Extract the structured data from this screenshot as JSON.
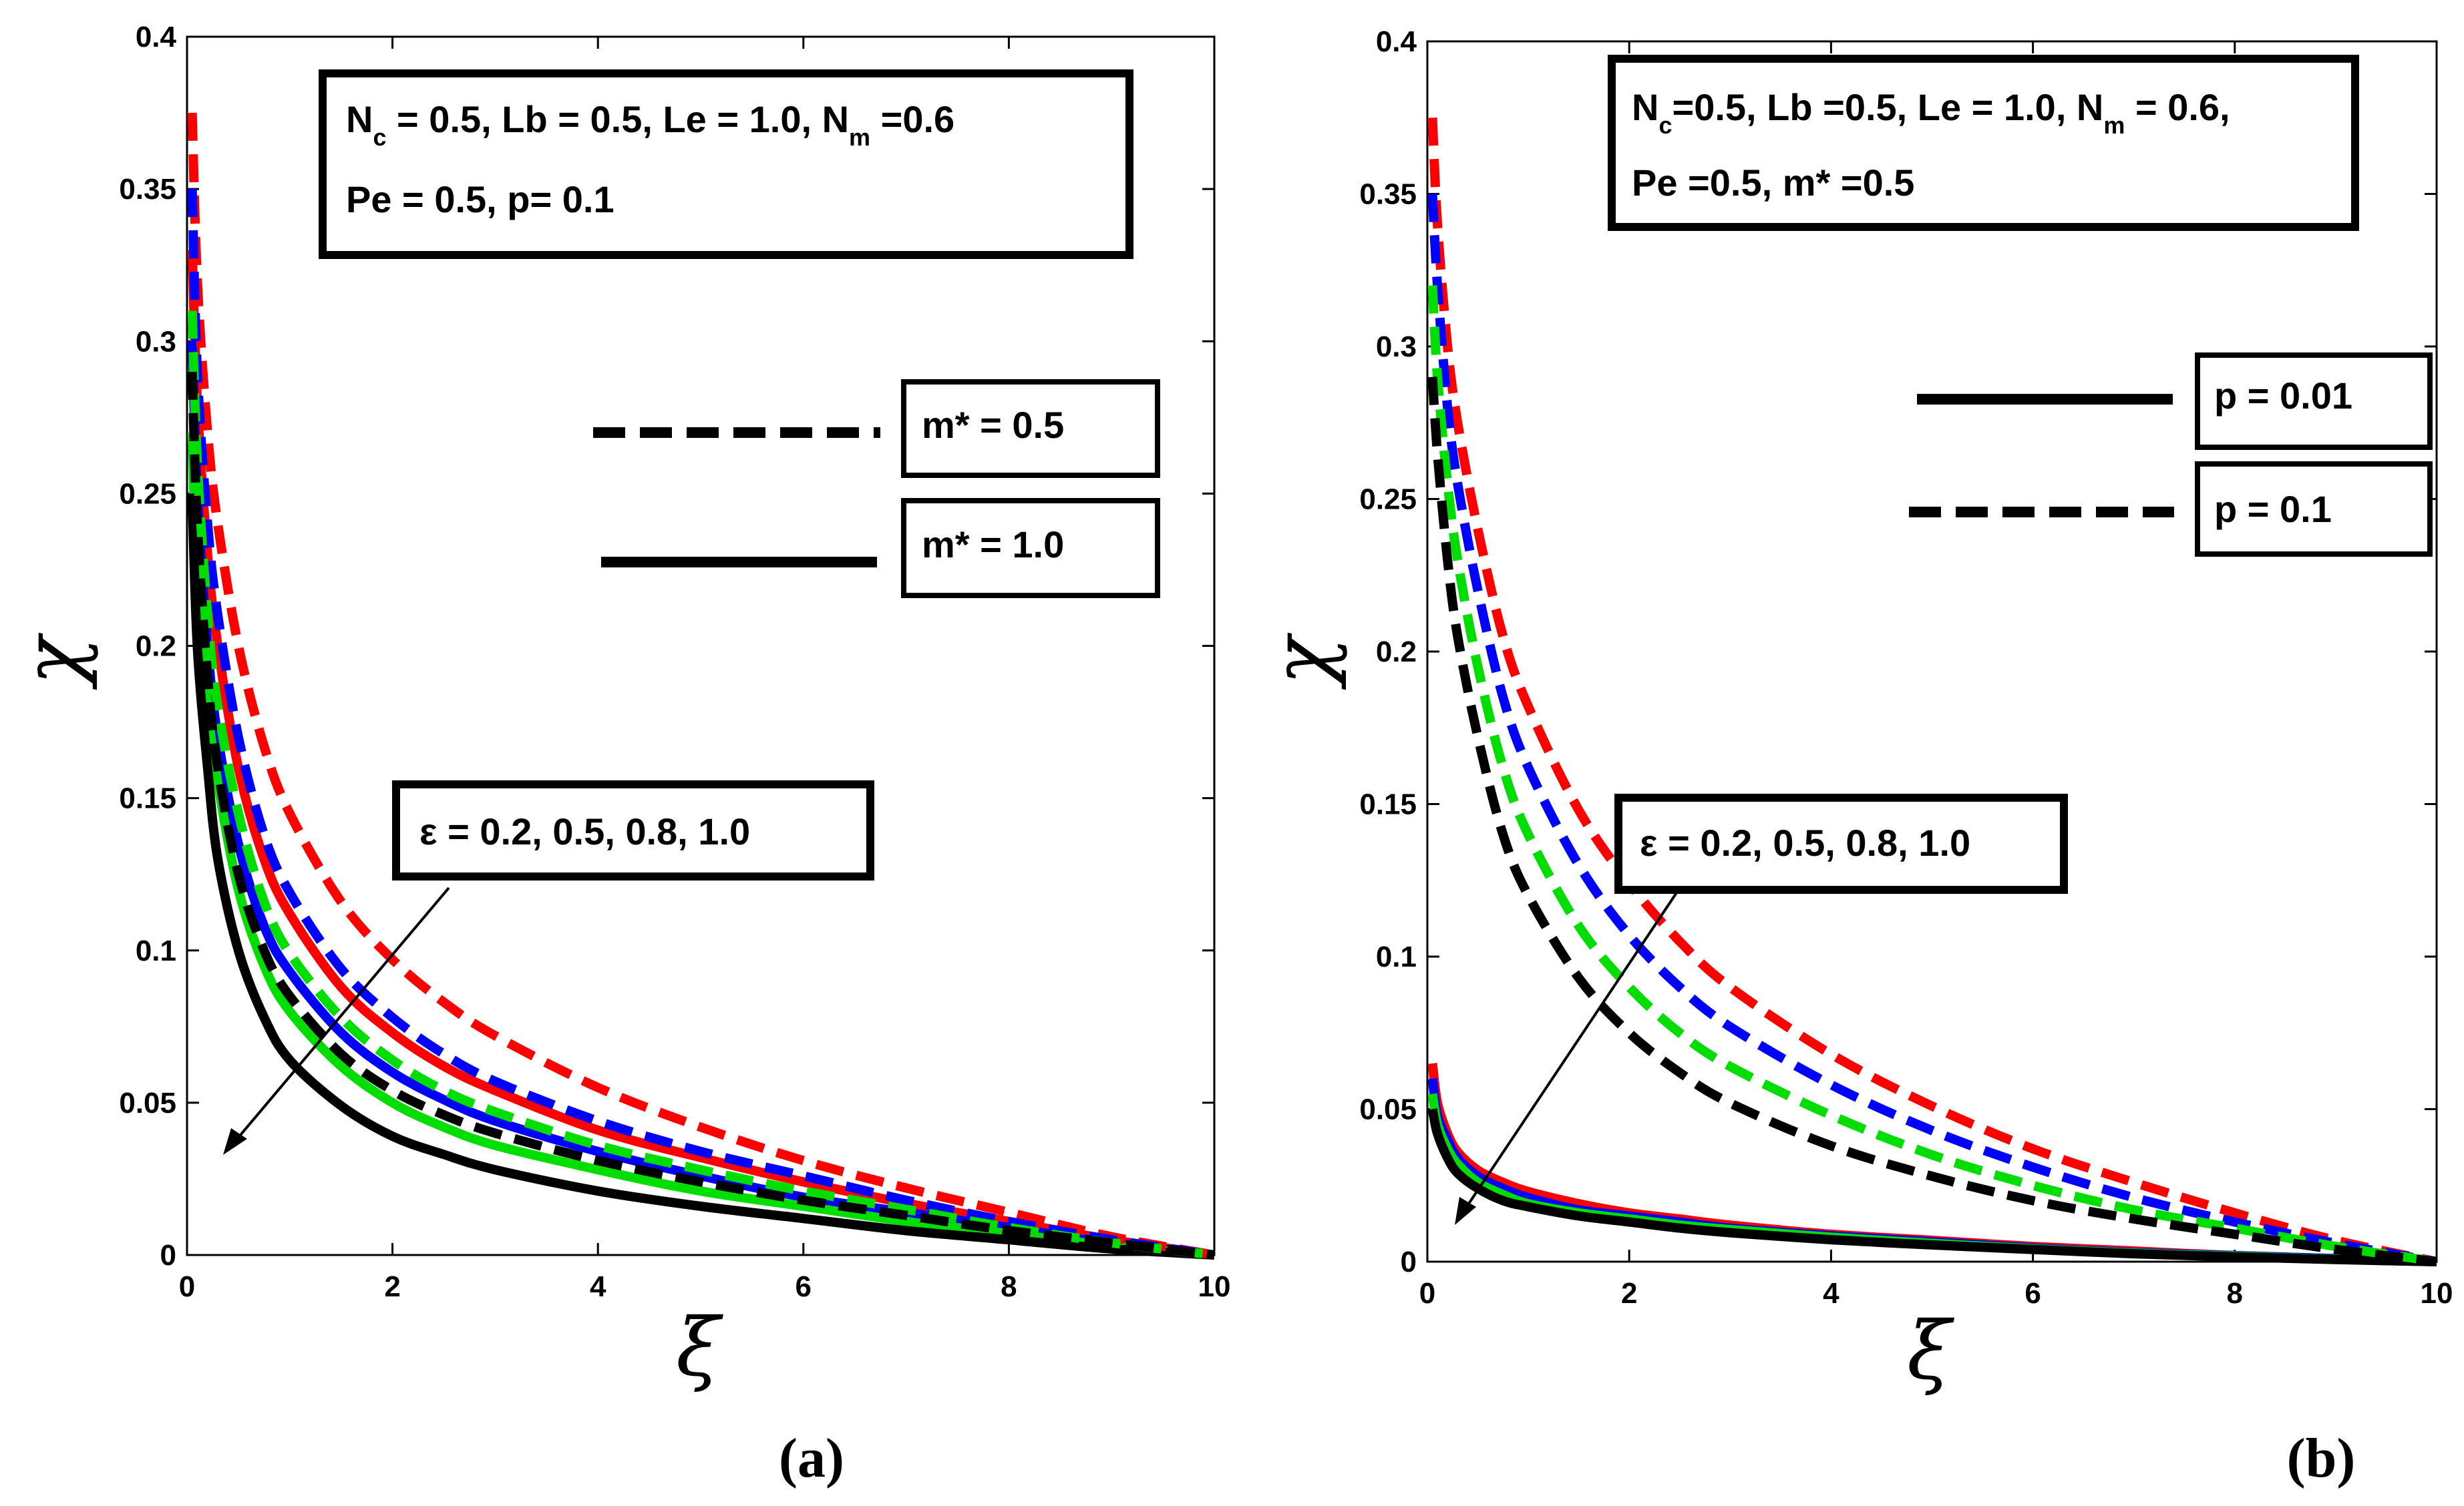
{
  "chart_data": [
    {
      "type": "line",
      "panel_label": "(a)",
      "xlabel": "ξ",
      "ylabel": "χ",
      "xlim": [
        0,
        10
      ],
      "ylim": [
        0,
        0.4
      ],
      "x_ticks": [
        "0",
        "2",
        "4",
        "6",
        "8",
        "10"
      ],
      "y_ticks": [
        "0",
        "0.05",
        "0.1",
        "0.15",
        "0.2",
        "0.25",
        "0.3",
        "0.35",
        "0.4"
      ],
      "params_line1": [
        "N",
        "c",
        " = 0.5, Lb = 0.5, Le = 1.0, N",
        "m",
        " =0.6"
      ],
      "params_line2": "Pe =  0.5, p= 0.1",
      "legend": [
        {
          "label": "m* = 0.5",
          "style": "dashed"
        },
        {
          "label": "m* = 1.0",
          "style": "solid"
        }
      ],
      "annotation": "ε = 0.2, 0.5, 0.8, 1.0",
      "series_colors": [
        "#ff0000",
        "#0000ff",
        "#00dd00",
        "#000000"
      ],
      "x": [
        0.05,
        0.1,
        0.2,
        0.3,
        0.5,
        0.75,
        1,
        1.5,
        2,
        2.5,
        3,
        4,
        5,
        6,
        7,
        8,
        9,
        10
      ],
      "series": [
        {
          "style": "dashed",
          "color": "#ff0000",
          "values": [
            0.375,
            0.32,
            0.27,
            0.24,
            0.2,
            0.167,
            0.145,
            0.116,
            0.097,
            0.083,
            0.072,
            0.055,
            0.042,
            0.031,
            0.022,
            0.014,
            0.006,
            0.0
          ]
        },
        {
          "style": "dashed",
          "color": "#0000ff",
          "values": [
            0.35,
            0.29,
            0.24,
            0.21,
            0.17,
            0.138,
            0.119,
            0.094,
            0.078,
            0.066,
            0.057,
            0.044,
            0.034,
            0.026,
            0.018,
            0.011,
            0.005,
            0.0
          ]
        },
        {
          "style": "dashed",
          "color": "#00dd00",
          "values": [
            0.31,
            0.26,
            0.21,
            0.18,
            0.145,
            0.116,
            0.099,
            0.078,
            0.064,
            0.054,
            0.047,
            0.036,
            0.028,
            0.021,
            0.015,
            0.009,
            0.004,
            0.0
          ]
        },
        {
          "style": "dashed",
          "color": "#000000",
          "values": [
            0.29,
            0.24,
            0.19,
            0.16,
            0.125,
            0.1,
            0.085,
            0.066,
            0.054,
            0.046,
            0.04,
            0.031,
            0.024,
            0.018,
            0.013,
            0.008,
            0.004,
            0.0
          ]
        },
        {
          "style": "solid",
          "color": "#ff0000",
          "values": [
            0.33,
            0.28,
            0.23,
            0.2,
            0.16,
            0.13,
            0.112,
            0.088,
            0.073,
            0.062,
            0.054,
            0.041,
            0.032,
            0.024,
            0.017,
            0.011,
            0.005,
            0.0
          ]
        },
        {
          "style": "solid",
          "color": "#0000ff",
          "values": [
            0.3,
            0.25,
            0.2,
            0.17,
            0.135,
            0.108,
            0.093,
            0.073,
            0.06,
            0.051,
            0.044,
            0.034,
            0.026,
            0.019,
            0.014,
            0.009,
            0.004,
            0.0
          ]
        },
        {
          "style": "solid",
          "color": "#00dd00",
          "values": [
            0.27,
            0.22,
            0.18,
            0.155,
            0.12,
            0.095,
            0.08,
            0.062,
            0.05,
            0.042,
            0.036,
            0.028,
            0.021,
            0.016,
            0.011,
            0.007,
            0.003,
            0.0
          ]
        },
        {
          "style": "solid",
          "color": "#000000",
          "values": [
            0.25,
            0.2,
            0.16,
            0.13,
            0.1,
            0.078,
            0.064,
            0.049,
            0.039,
            0.033,
            0.028,
            0.021,
            0.016,
            0.012,
            0.008,
            0.005,
            0.002,
            0.0
          ]
        }
      ]
    },
    {
      "type": "line",
      "panel_label": "(b)",
      "xlabel": "ξ",
      "ylabel": "χ",
      "xlim": [
        0,
        10
      ],
      "ylim": [
        0,
        0.4
      ],
      "x_ticks": [
        "0",
        "2",
        "4",
        "6",
        "8",
        "10"
      ],
      "y_ticks": [
        "0",
        "0.05",
        "0.1",
        "0.15",
        "0.2",
        "0.25",
        "0.3",
        "0.35",
        "0.4"
      ],
      "params_line1": [
        "N",
        "c",
        "=0.5, Lb =0.5, Le = 1.0, N",
        "m",
        " = 0.6,"
      ],
      "params_line2": "Pe =0.5, m* =0.5",
      "legend": [
        {
          "label": "p = 0.01",
          "style": "solid"
        },
        {
          "label": "p = 0.1",
          "style": "dashed"
        }
      ],
      "annotation": "ε = 0.2, 0.5, 0.8, 1.0",
      "series_colors": [
        "#ff0000",
        "#0000ff",
        "#00dd00",
        "#000000"
      ],
      "x": [
        0.05,
        0.1,
        0.2,
        0.3,
        0.5,
        0.75,
        1,
        1.5,
        2,
        2.5,
        3,
        4,
        5,
        6,
        7,
        8,
        9,
        10
      ],
      "series": [
        {
          "style": "dashed",
          "color": "#ff0000",
          "values": [
            0.375,
            0.34,
            0.3,
            0.275,
            0.24,
            0.205,
            0.182,
            0.148,
            0.124,
            0.105,
            0.09,
            0.068,
            0.051,
            0.037,
            0.026,
            0.016,
            0.007,
            0.0
          ]
        },
        {
          "style": "dashed",
          "color": "#0000ff",
          "values": [
            0.35,
            0.32,
            0.28,
            0.255,
            0.22,
            0.185,
            0.162,
            0.13,
            0.107,
            0.09,
            0.077,
            0.058,
            0.043,
            0.031,
            0.021,
            0.013,
            0.006,
            0.0
          ]
        },
        {
          "style": "dashed",
          "color": "#00dd00",
          "values": [
            0.32,
            0.29,
            0.255,
            0.23,
            0.195,
            0.162,
            0.14,
            0.11,
            0.09,
            0.075,
            0.064,
            0.048,
            0.035,
            0.025,
            0.017,
            0.011,
            0.005,
            0.0
          ]
        },
        {
          "style": "dashed",
          "color": "#000000",
          "values": [
            0.29,
            0.265,
            0.23,
            0.205,
            0.172,
            0.14,
            0.12,
            0.093,
            0.075,
            0.062,
            0.052,
            0.038,
            0.028,
            0.02,
            0.014,
            0.009,
            0.004,
            0.0
          ]
        },
        {
          "style": "solid",
          "color": "#ff0000",
          "values": [
            0.065,
            0.052,
            0.042,
            0.036,
            0.03,
            0.026,
            0.023,
            0.019,
            0.016,
            0.014,
            0.012,
            0.009,
            0.007,
            0.005,
            0.0035,
            0.002,
            0.001,
            0.0
          ]
        },
        {
          "style": "solid",
          "color": "#0000ff",
          "values": [
            0.06,
            0.048,
            0.04,
            0.034,
            0.028,
            0.024,
            0.021,
            0.017,
            0.015,
            0.013,
            0.011,
            0.0085,
            0.0065,
            0.0045,
            0.003,
            0.002,
            0.001,
            0.0
          ]
        },
        {
          "style": "solid",
          "color": "#00dd00",
          "values": [
            0.055,
            0.045,
            0.037,
            0.032,
            0.026,
            0.022,
            0.019,
            0.016,
            0.014,
            0.012,
            0.0105,
            0.008,
            0.006,
            0.0042,
            0.0028,
            0.0018,
            0.0008,
            0.0
          ]
        },
        {
          "style": "solid",
          "color": "#000000",
          "values": [
            0.05,
            0.042,
            0.034,
            0.029,
            0.024,
            0.02,
            0.018,
            0.015,
            0.013,
            0.011,
            0.0095,
            0.0072,
            0.0055,
            0.004,
            0.0026,
            0.0016,
            0.0007,
            0.0
          ]
        }
      ]
    }
  ]
}
